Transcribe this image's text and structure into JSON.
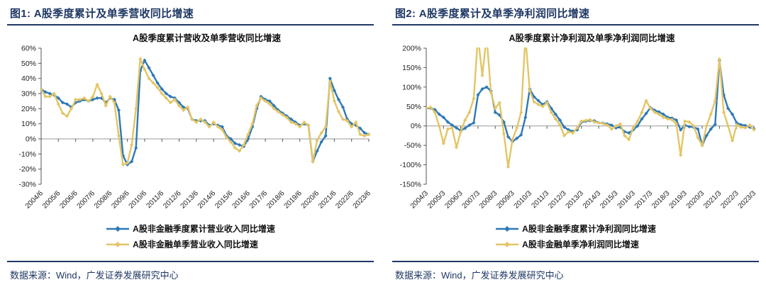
{
  "colors": {
    "navy": "#1F3864",
    "blue": "#2E79B5",
    "gold": "#E3C566",
    "zero_line": "#999999",
    "axis": "#555555"
  },
  "figures": [
    {
      "header": "图1:  A股季度累计及单季营收同比增速",
      "source": "数据来源：Wind，广发证券发展研究中心"
    },
    {
      "header": "图2:  A股季度累计及单季净利润同比增速",
      "source": "数据来源：Wind，广发证券发展研究中心"
    }
  ],
  "chart_data": [
    {
      "type": "line",
      "title": "A股季度累计营收及单季营收同比增速",
      "x_frequency": "quarterly",
      "x_start": "2004/6",
      "x_end": "2023/6",
      "x_tick_labels": [
        "2004/6",
        "2005/6",
        "2006/6",
        "2007/6",
        "2008/6",
        "2009/6",
        "2010/6",
        "2011/6",
        "2012/6",
        "2013/6",
        "2014/6",
        "2015/6",
        "2016/6",
        "2017/6",
        "2018/6",
        "2019/6",
        "2020/6",
        "2021/6",
        "2022/6",
        "2023/6"
      ],
      "tick_every": 4,
      "ylim": [
        -30,
        60
      ],
      "ytick_step": 10,
      "ytick_format": "percent",
      "grid": "none",
      "legend_position": "bottom",
      "series": [
        {
          "name": "A股非金融季度累计营业收入同比增速",
          "color": "#2E79B5",
          "values": [
            33,
            31,
            30,
            29,
            27,
            24,
            23,
            21,
            24,
            25,
            26,
            25,
            26,
            27,
            27,
            24,
            27,
            26,
            19,
            -11,
            -17,
            -15,
            -6,
            45,
            52,
            47,
            42,
            37,
            33,
            30,
            28,
            27,
            24,
            21,
            20,
            13,
            12,
            12,
            12,
            9,
            10,
            9,
            8,
            2,
            0,
            -3,
            -4,
            -5,
            0,
            8,
            20,
            28,
            26,
            25,
            22,
            19,
            17,
            15,
            13,
            11,
            9,
            10,
            9,
            -15,
            -8,
            -2,
            2,
            40,
            32,
            26,
            21,
            13,
            10,
            9,
            7,
            4,
            3
          ]
        },
        {
          "name": "A股非金融单季营业收入同比增速",
          "color": "#E3C566",
          "values": [
            33,
            28,
            28,
            30,
            23,
            17,
            15,
            20,
            26,
            26,
            27,
            25,
            28,
            36,
            30,
            22,
            28,
            24,
            2,
            -17,
            -16,
            -4,
            20,
            53,
            46,
            40,
            37,
            34,
            30,
            27,
            24,
            26,
            22,
            19,
            21,
            13,
            11,
            13,
            11,
            8,
            11,
            8,
            6,
            1,
            -2,
            -6,
            -8,
            -4,
            3,
            10,
            22,
            27,
            25,
            23,
            20,
            18,
            16,
            14,
            11,
            10,
            8,
            11,
            9,
            -15,
            -1,
            4,
            8,
            38,
            25,
            18,
            13,
            12,
            8,
            11,
            3,
            2,
            3
          ]
        }
      ]
    },
    {
      "type": "line",
      "title": "A股季度累计净利润及单季净利润同比增速",
      "x_frequency": "quarterly",
      "x_start": "2004/3",
      "x_end": "2023/3",
      "x_tick_labels": [
        "2004/3",
        "2005/3",
        "2006/3",
        "2007/3",
        "2008/3",
        "2009/3",
        "2010/3",
        "2011/3",
        "2012/3",
        "2013/3",
        "2014/3",
        "2015/3",
        "2016/3",
        "2017/3",
        "2018/3",
        "2019/3",
        "2020/3",
        "2021/3",
        "2022/3",
        "2023/3"
      ],
      "tick_every": 4,
      "ylim": [
        -150,
        200
      ],
      "ytick_step": 50,
      "ytick_format": "percent",
      "grid": "none",
      "legend_position": "bottom",
      "clip_note": "single-quarter series exceeds +200% at 2007/3, 2007/9, 2009/12 (clipped at plot top)",
      "series": [
        {
          "name": "A股非金融季度累计净利润同比增速",
          "color": "#2E79B5",
          "values": [
            45,
            46,
            42,
            30,
            22,
            10,
            2,
            -5,
            -12,
            -6,
            2,
            8,
            80,
            95,
            100,
            90,
            35,
            28,
            10,
            -28,
            -40,
            -32,
            -23,
            22,
            95,
            75,
            65,
            55,
            62,
            45,
            30,
            15,
            -3,
            -10,
            -14,
            -10,
            10,
            12,
            14,
            13,
            8,
            7,
            5,
            2,
            -5,
            -3,
            -15,
            -18,
            -10,
            0,
            18,
            32,
            47,
            40,
            36,
            30,
            22,
            20,
            15,
            -10,
            2,
            -2,
            -3,
            -8,
            -50,
            -25,
            -8,
            4,
            168,
            80,
            45,
            30,
            8,
            3,
            1,
            -3,
            -7
          ]
        },
        {
          "name": "A股非金融单季净利润同比增速",
          "color": "#E3C566",
          "values": [
            45,
            48,
            35,
            0,
            -45,
            -8,
            -5,
            -55,
            -15,
            15,
            35,
            70,
            230,
            130,
            230,
            85,
            45,
            60,
            -20,
            -105,
            -35,
            -5,
            35,
            230,
            90,
            62,
            55,
            50,
            60,
            35,
            18,
            3,
            -25,
            -15,
            -18,
            -5,
            12,
            14,
            16,
            10,
            8,
            6,
            2,
            -8,
            0,
            5,
            -25,
            -35,
            -5,
            12,
            35,
            65,
            45,
            35,
            30,
            22,
            18,
            16,
            5,
            -75,
            12,
            10,
            0,
            -30,
            -50,
            0,
            30,
            65,
            172,
            35,
            0,
            -38,
            3,
            -3,
            -5,
            2,
            -10
          ]
        }
      ]
    }
  ]
}
